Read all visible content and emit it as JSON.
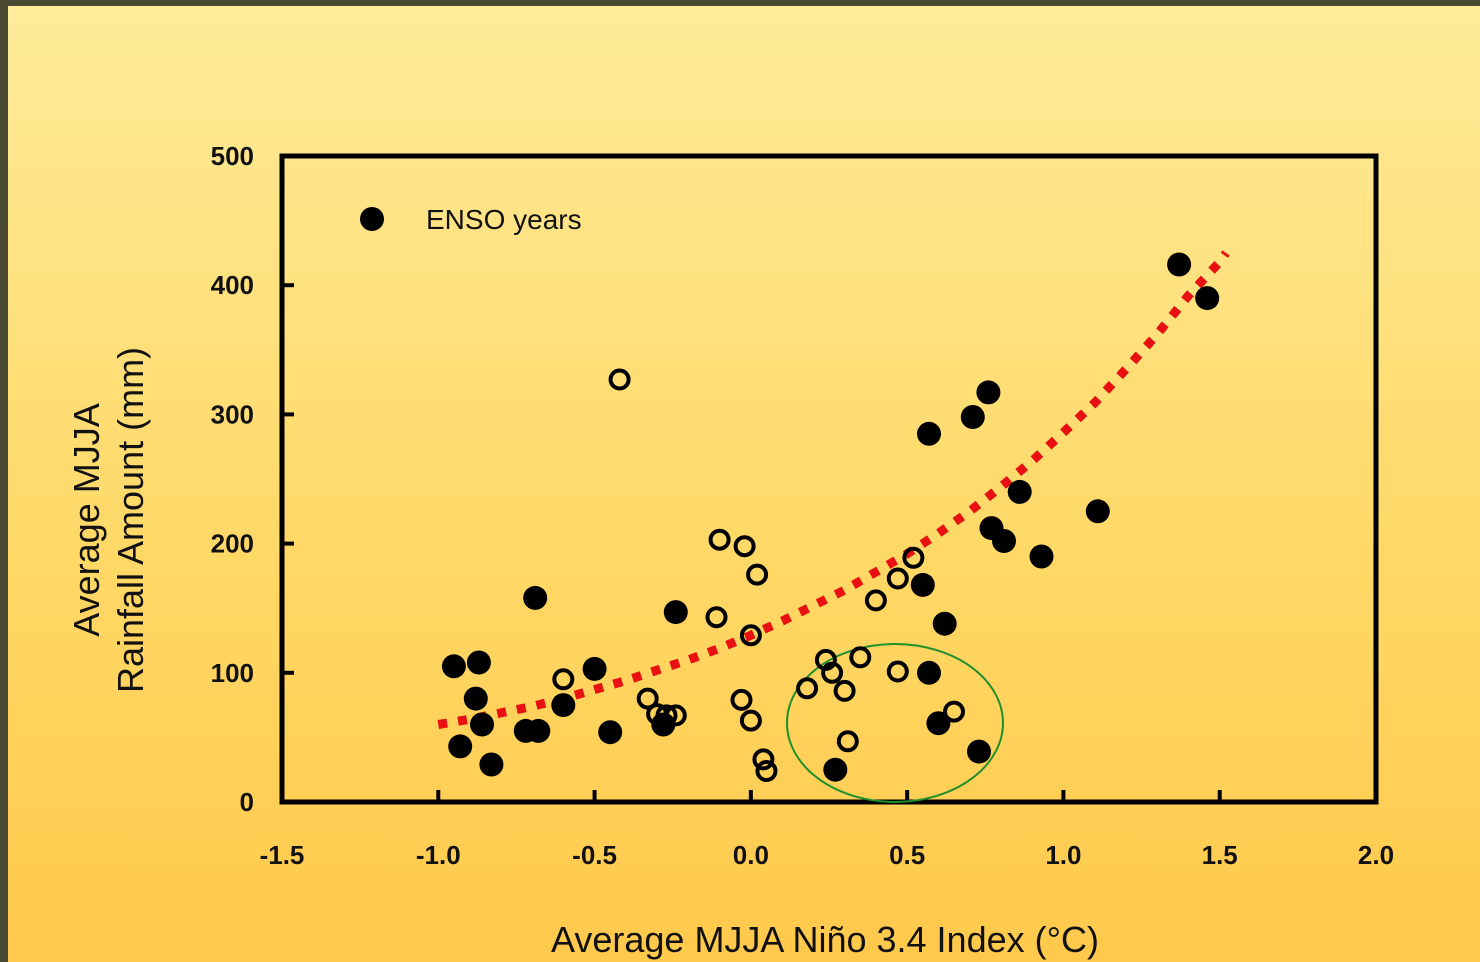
{
  "chart_data": {
    "type": "scatter",
    "title": "",
    "xlabel": "Average MJJA Niño 3.4 Index (°C)",
    "ylabel_lines": [
      "Average MJJA",
      "Rainfall Amount (mm)"
    ],
    "xlim": [
      -1.5,
      2.0
    ],
    "ylim": [
      0,
      500
    ],
    "x_ticks": [
      -1.5,
      -1.0,
      -0.5,
      0.0,
      0.5,
      1.0,
      1.5,
      2.0
    ],
    "x_tick_labels": [
      "-1.5",
      "-1.0",
      "-0.5",
      "0.0",
      "0.5",
      "1.0",
      "1.5",
      "2.0"
    ],
    "y_ticks": [
      0,
      100,
      200,
      300,
      400,
      500
    ],
    "y_tick_labels": [
      "0",
      "100",
      "200",
      "300",
      "400",
      "500"
    ],
    "grid": false,
    "legend": {
      "position": "top-left",
      "entry": "ENSO years"
    },
    "series": [
      {
        "name": "ENSO years",
        "marker": "filled-circle",
        "color": "#000000",
        "x": [
          -0.95,
          -0.93,
          -0.87,
          -0.88,
          -0.86,
          -0.83,
          -0.72,
          -0.68,
          -0.69,
          -0.6,
          -0.5,
          -0.45,
          -0.24,
          -0.28,
          0.57,
          0.71,
          0.76,
          0.55,
          0.62,
          0.57,
          0.6,
          0.73,
          0.77,
          0.81,
          0.86,
          0.93,
          1.11,
          1.37,
          1.46,
          0.27
        ],
        "y": [
          105,
          43,
          108,
          80,
          60,
          29,
          55,
          55,
          158,
          75,
          103,
          54,
          147,
          60,
          285,
          298,
          317,
          168,
          138,
          100,
          61,
          39,
          212,
          202,
          240,
          190,
          225,
          416,
          390,
          25
        ]
      },
      {
        "name": "",
        "marker": "open-circle",
        "color": "#000000",
        "x": [
          -0.42,
          -0.1,
          -0.02,
          0.02,
          -0.11,
          0.0,
          -0.6,
          -0.33,
          -0.3,
          -0.27,
          -0.24,
          -0.03,
          0.0,
          0.04,
          0.05,
          0.18,
          0.24,
          0.26,
          0.3,
          0.31,
          0.35,
          0.4,
          0.47,
          0.52,
          0.47,
          0.65
        ],
        "y": [
          327,
          203,
          198,
          176,
          143,
          129,
          95,
          80,
          68,
          67,
          67,
          79,
          63,
          33,
          24,
          88,
          110,
          100,
          86,
          47,
          112,
          156,
          173,
          189,
          101,
          70
        ]
      }
    ],
    "fit_curve": {
      "style": "dotted",
      "color": "#e81010",
      "x": [
        -1.0,
        -0.9,
        -0.8,
        -0.7,
        -0.6,
        -0.5,
        -0.4,
        -0.3,
        -0.2,
        -0.1,
        0.0,
        0.1,
        0.2,
        0.3,
        0.4,
        0.5,
        0.6,
        0.7,
        0.8,
        0.9,
        1.0,
        1.1,
        1.2,
        1.3,
        1.4,
        1.5,
        1.52
      ],
      "y": [
        60,
        64,
        69,
        74,
        80,
        87,
        94,
        102,
        110,
        119,
        129,
        140,
        152,
        164,
        178,
        192,
        208,
        225,
        244,
        264,
        286,
        309,
        335,
        362,
        392,
        418,
        425
      ]
    }
  }
}
